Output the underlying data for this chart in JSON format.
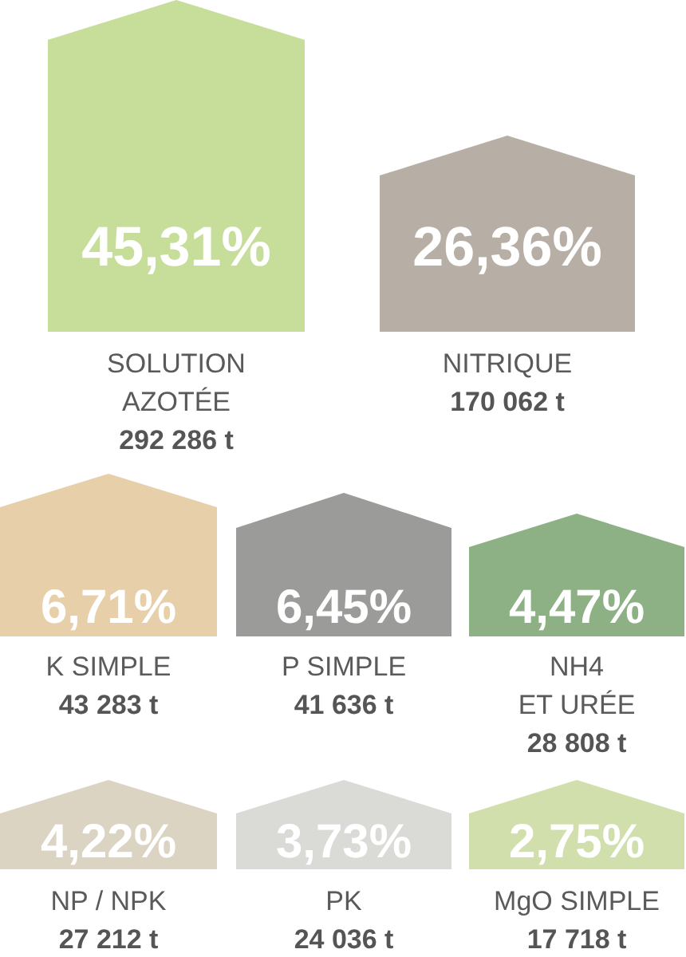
{
  "chart_data": {
    "type": "other",
    "categories": [
      "SOLUTION\nAZOTÉE",
      "NITRIQUE",
      "K SIMPLE",
      "P SIMPLE",
      "NH4\nET URÉE",
      "NP / NPK",
      "PK",
      "MgO SIMPLE"
    ],
    "series": [
      {
        "colors": [
          "#c6de9a",
          "#b7afa5",
          "#e6cfa9",
          "#9b9b99",
          "#8db185",
          "#dcd4c3",
          "#dadad6",
          "#d0dfac"
        ],
        "values": [
          45.31,
          26.36,
          6.71,
          6.45,
          4.47,
          4.22,
          3.73,
          2.75
        ],
        "value_labels": [
          "45,31%",
          "26,36%",
          "6,71%",
          "6,45%",
          "4,47%",
          "4,22%",
          "3,73%",
          "2,75%"
        ]
      },
      {
        "values": [
          292286,
          170062,
          43283,
          41636,
          28808,
          27212,
          24036,
          17718
        ],
        "value_labels": [
          "292 286 t",
          "170 062 t",
          "43 283 t",
          "41 636 t",
          "28 808 t",
          "27 212 t",
          "24 036 t",
          "17 718 t"
        ]
      }
    ]
  }
}
